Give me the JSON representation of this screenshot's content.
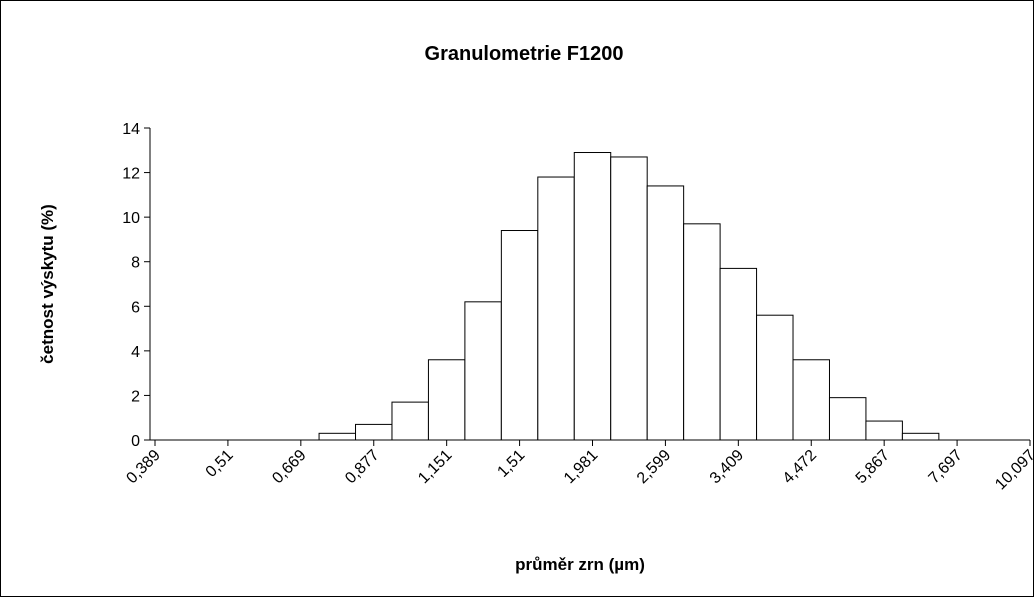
{
  "chart_data": {
    "type": "bar",
    "title": "Granulometrie F1200",
    "x_label": "průměr zrn (µm)",
    "y_label": "četnost výskytu (%)",
    "categories": [
      "0,389",
      null,
      "0,51",
      null,
      "0,669",
      null,
      "0,877",
      null,
      "1,151",
      null,
      "1,51",
      null,
      "1,981",
      null,
      "2,599",
      null,
      "3,409",
      null,
      "4,472",
      null,
      "5,867",
      null,
      "7,697",
      null,
      "10,097"
    ],
    "values": [
      0,
      0,
      0,
      0,
      0,
      0.3,
      0.7,
      1.7,
      3.6,
      6.2,
      9.4,
      11.8,
      12.9,
      12.7,
      11.4,
      9.7,
      7.7,
      5.6,
      3.6,
      1.9,
      0.85,
      0.3,
      0,
      0,
      0
    ],
    "color": "#ffffff",
    "ylim": [
      0,
      14
    ],
    "yticks": [
      0,
      2,
      4,
      6,
      8,
      10,
      12,
      14
    ],
    "grid": false
  }
}
